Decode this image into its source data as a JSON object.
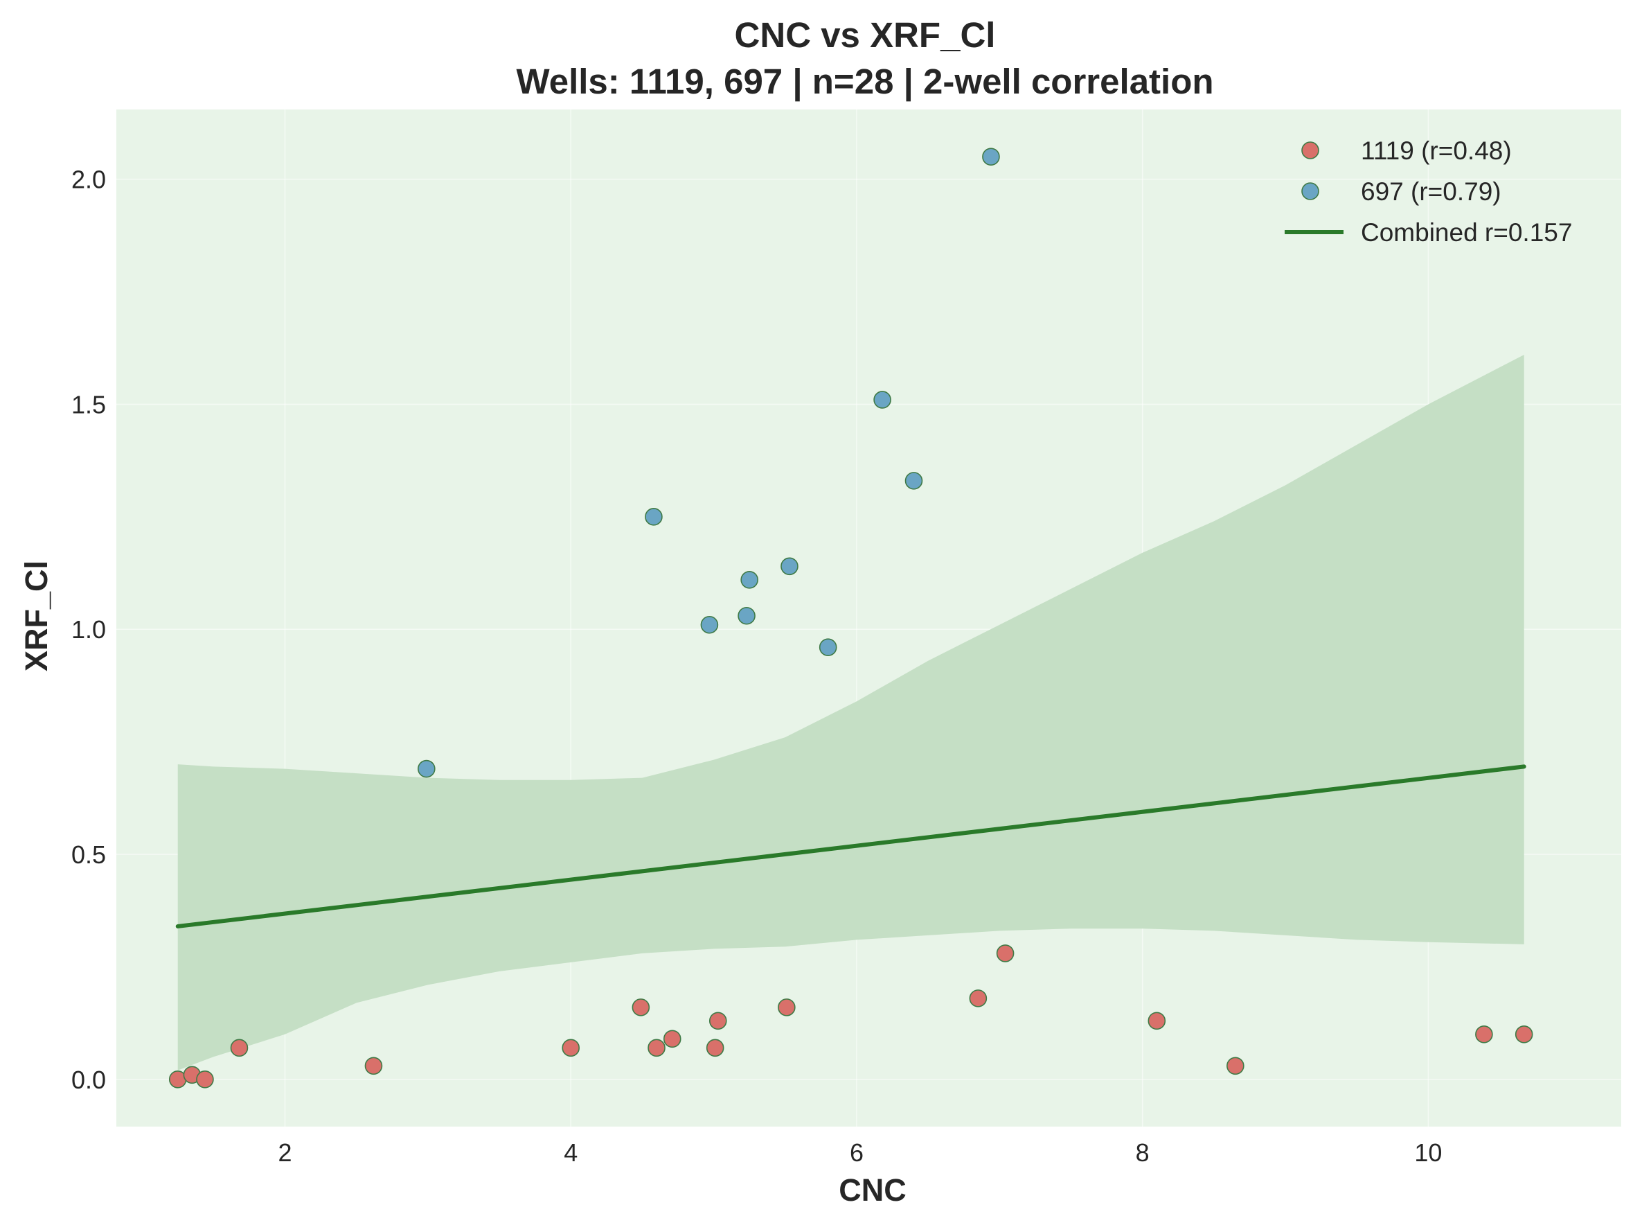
{
  "chart_data": {
    "type": "scatter",
    "title": "CNC vs XRF_Cl",
    "subtitle": "Wells: 1119, 697 | n=28 | 2-well correlation",
    "xlabel": "CNC",
    "ylabel": "XRF_Cl",
    "xlim": [
      0.82,
      11.35
    ],
    "ylim": [
      -0.105,
      2.155
    ],
    "xticks": [
      2,
      4,
      6,
      8,
      10
    ],
    "yticks": [
      0.0,
      0.5,
      1.0,
      1.5,
      2.0
    ],
    "xtick_labels": [
      "2",
      "4",
      "6",
      "8",
      "10"
    ],
    "ytick_labels": [
      "0.0",
      "0.5",
      "1.0",
      "1.5",
      "2.0"
    ],
    "grid": true,
    "legend_position": "top-right",
    "background_color": "#e8f4e8",
    "series": [
      {
        "name": "1119 (r=0.48)",
        "color": "#d9706a",
        "points": [
          [
            1.25,
            0.0
          ],
          [
            1.35,
            0.01
          ],
          [
            1.44,
            0.0
          ],
          [
            1.68,
            0.07
          ],
          [
            2.62,
            0.03
          ],
          [
            4.0,
            0.07
          ],
          [
            4.49,
            0.16
          ],
          [
            4.6,
            0.07
          ],
          [
            4.71,
            0.09
          ],
          [
            5.01,
            0.07
          ],
          [
            5.03,
            0.13
          ],
          [
            5.51,
            0.16
          ],
          [
            6.85,
            0.18
          ],
          [
            7.04,
            0.28
          ],
          [
            8.1,
            0.13
          ],
          [
            8.65,
            0.03
          ],
          [
            10.39,
            0.1
          ],
          [
            10.67,
            0.1
          ]
        ]
      },
      {
        "name": "697 (r=0.79)",
        "color": "#6aa5c4",
        "points": [
          [
            2.99,
            0.69
          ],
          [
            4.58,
            1.25
          ],
          [
            4.97,
            1.01
          ],
          [
            5.23,
            1.03
          ],
          [
            5.25,
            1.11
          ],
          [
            5.53,
            1.14
          ],
          [
            5.8,
            0.96
          ],
          [
            6.18,
            1.51
          ],
          [
            6.4,
            1.33
          ],
          [
            6.94,
            2.05
          ]
        ]
      }
    ],
    "fit_line": {
      "name": "Combined r=0.157",
      "color": "#2a7a2a",
      "x": [
        1.25,
        10.67
      ],
      "y": [
        0.34,
        0.695
      ]
    },
    "confidence_band": {
      "color": "#c5dfc5",
      "x": [
        1.25,
        1.5,
        2.0,
        2.5,
        3.0,
        3.5,
        4.0,
        4.5,
        5.0,
        5.5,
        6.0,
        6.5,
        7.0,
        7.5,
        8.0,
        8.5,
        9.0,
        9.5,
        10.0,
        10.67
      ],
      "lower": [
        0.02,
        0.05,
        0.1,
        0.17,
        0.21,
        0.24,
        0.26,
        0.28,
        0.29,
        0.295,
        0.31,
        0.32,
        0.33,
        0.335,
        0.335,
        0.33,
        0.32,
        0.31,
        0.305,
        0.3
      ],
      "upper": [
        0.7,
        0.695,
        0.69,
        0.68,
        0.67,
        0.665,
        0.665,
        0.67,
        0.71,
        0.76,
        0.84,
        0.93,
        1.01,
        1.09,
        1.17,
        1.24,
        1.32,
        1.41,
        1.5,
        1.61
      ]
    }
  }
}
